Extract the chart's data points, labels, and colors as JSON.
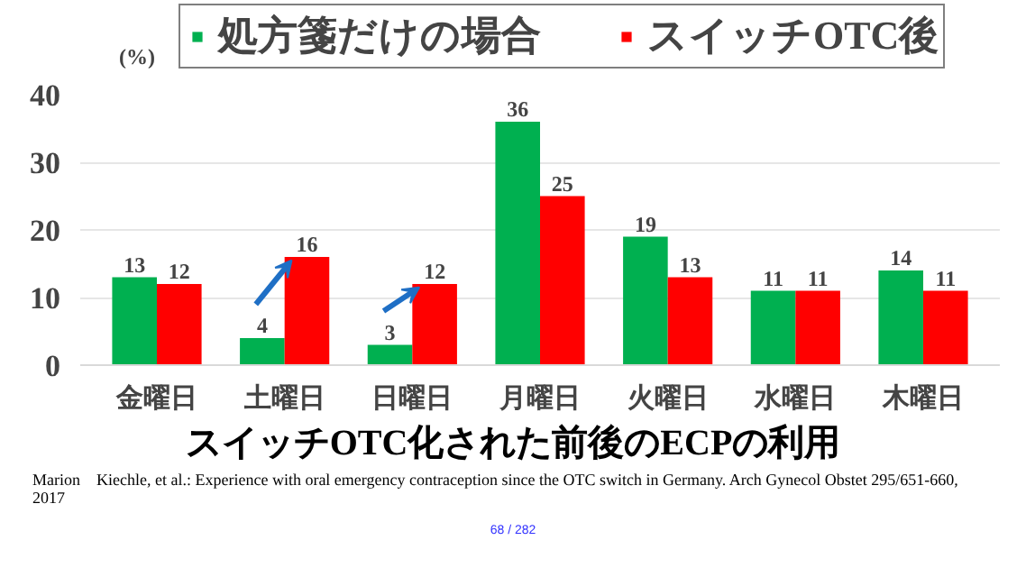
{
  "chart_data": {
    "type": "bar",
    "title": "スイッチOTC化された前後のECPの利用",
    "ylabel": "(%)",
    "categories": [
      "金曜日",
      "土曜日",
      "日曜日",
      "月曜日",
      "火曜日",
      "水曜日",
      "木曜日"
    ],
    "series": [
      {
        "name": "処方箋だけの場合",
        "color": "#00b050",
        "values": [
          13,
          4,
          3,
          36,
          19,
          11,
          14
        ]
      },
      {
        "name": "スイッチOTC後",
        "color": "#ff0000",
        "values": [
          12,
          16,
          12,
          25,
          13,
          11,
          11
        ]
      }
    ],
    "ylim": [
      0,
      40
    ],
    "yticks": [
      0,
      10,
      20,
      30,
      40
    ],
    "grid": "y",
    "legend": "top",
    "data_labels": true,
    "annotations": [
      "Marion　Kiechle, et al.: Experience with oral emergency contraception since the OTC switch in Germany. Arch Gynecol Obstet 295/651-660, 2017",
      "68 / 282"
    ]
  }
}
